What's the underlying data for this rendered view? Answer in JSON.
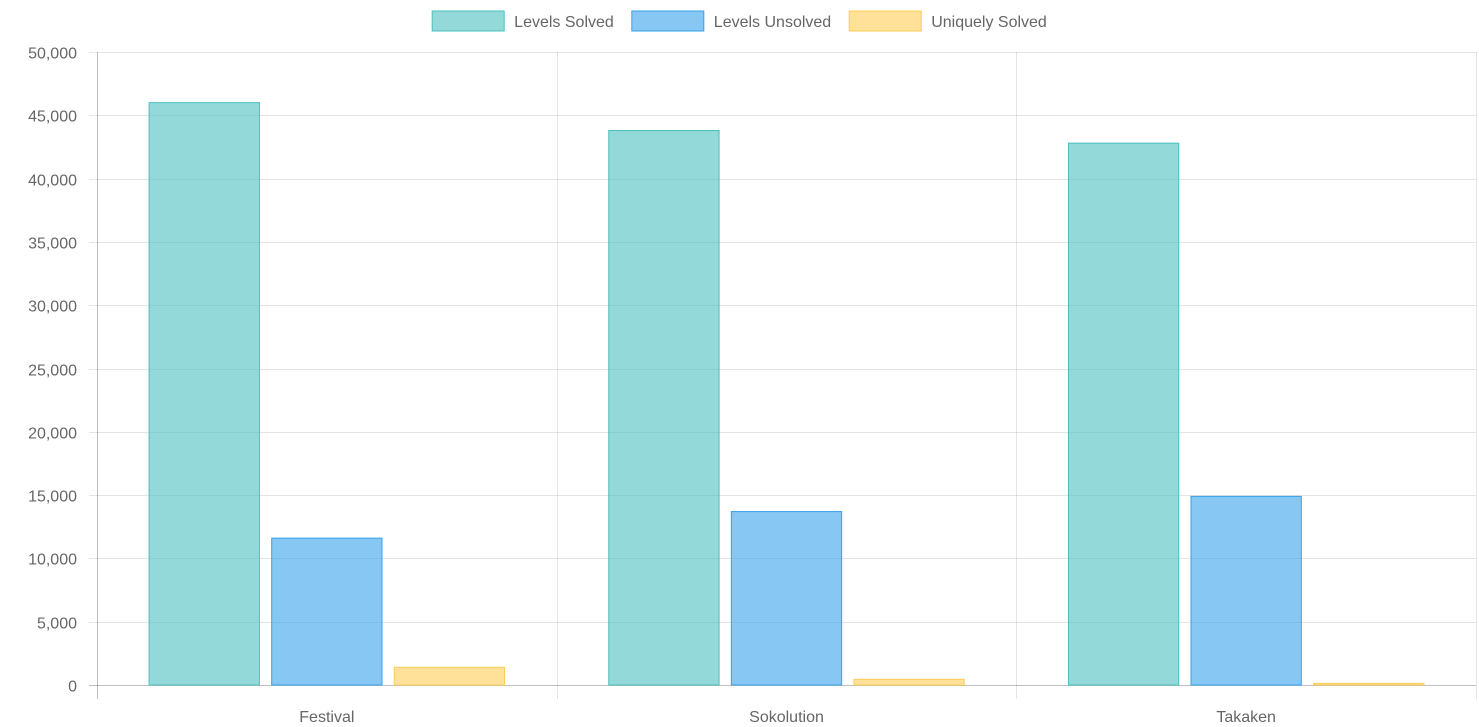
{
  "chart_data": {
    "type": "bar",
    "categories": [
      "Festival",
      "Sokolution",
      "Takaken"
    ],
    "series": [
      {
        "name": "Levels Solved",
        "values": [
          46000,
          43800,
          42800
        ],
        "color": "#4bc0c0"
      },
      {
        "name": "Levels Unsolved",
        "values": [
          11600,
          13700,
          14900
        ],
        "color": "#36a2eb"
      },
      {
        "name": "Uniquely Solved",
        "values": [
          1400,
          450,
          130
        ],
        "color": "#ffcd56"
      }
    ],
    "y_ticks": [
      "0",
      "5,000",
      "10,000",
      "15,000",
      "20,000",
      "25,000",
      "30,000",
      "35,000",
      "40,000",
      "45,000",
      "50,000"
    ],
    "ylim": [
      0,
      50000
    ],
    "legend": "top-center",
    "grid": true,
    "title": "",
    "xlabel": "",
    "ylabel": ""
  }
}
